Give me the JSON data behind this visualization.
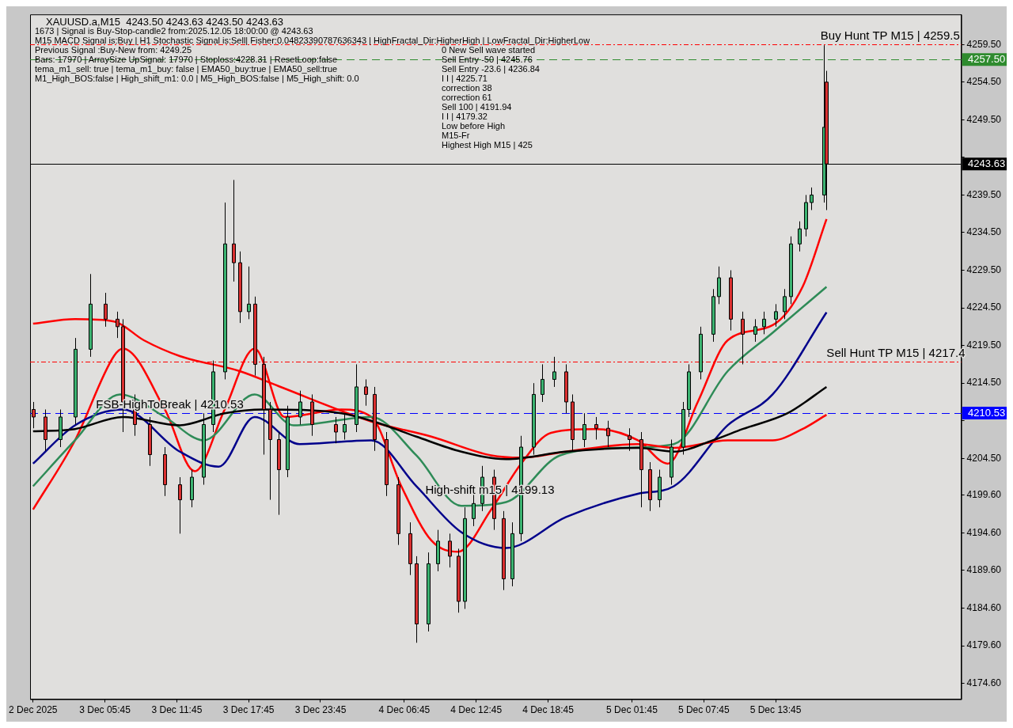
{
  "chart_data": {
    "type": "candlestick",
    "title": "XAUUSD.a,M15  4243.50 4243.63 4243.50 4243.63",
    "x": [
      "2025-12-02T23:45",
      "2025-12-03T00:45",
      "2025-12-03T02:00",
      "2025-12-03T03:15",
      "2025-12-03T04:30",
      "2025-12-03T05:45",
      "2025-12-03T06:45",
      "2025-12-03T07:15",
      "2025-12-03T08:15",
      "2025-12-03T09:30",
      "2025-12-03T10:45",
      "2025-12-03T12:00",
      "2025-12-03T13:00",
      "2025-12-03T14:00",
      "2025-12-03T14:45",
      "2025-12-03T15:45",
      "2025-12-03T16:30",
      "2025-12-03T17:00",
      "2025-12-03T17:45",
      "2025-12-03T18:15",
      "2025-12-03T19:00",
      "2025-12-03T19:30",
      "2025-12-03T20:15",
      "2025-12-03T21:00",
      "2025-12-03T22:00",
      "2025-12-03T23:00",
      "2025-12-04T01:00",
      "2025-12-04T01:45",
      "2025-12-04T02:45",
      "2025-12-04T03:30",
      "2025-12-04T04:15",
      "2025-12-04T05:15",
      "2025-12-04T06:15",
      "2025-12-04T07:15",
      "2025-12-04T07:45",
      "2025-12-04T08:45",
      "2025-12-04T09:30",
      "2025-12-04T10:30",
      "2025-12-04T11:15",
      "2025-12-04T11:45",
      "2025-12-04T12:30",
      "2025-12-04T13:15",
      "2025-12-04T14:15",
      "2025-12-04T15:00",
      "2025-12-04T15:45",
      "2025-12-04T16:30",
      "2025-12-04T17:30",
      "2025-12-04T18:15",
      "2025-12-04T19:15",
      "2025-12-04T20:15",
      "2025-12-04T20:45",
      "2025-12-04T21:45",
      "2025-12-04T22:45",
      "2025-12-04T23:45",
      "2025-12-05T01:30",
      "2025-12-05T02:30",
      "2025-12-05T03:15",
      "2025-12-05T04:00",
      "2025-12-05T05:00",
      "2025-12-05T06:00",
      "2025-12-05T06:30",
      "2025-12-05T07:30",
      "2025-12-05T08:30",
      "2025-12-05T09:00",
      "2025-12-05T10:00",
      "2025-12-05T11:00",
      "2025-12-05T12:00",
      "2025-12-05T12:45",
      "2025-12-05T13:45",
      "2025-12-05T14:30",
      "2025-12-05T15:00",
      "2025-12-05T15:45",
      "2025-12-05T16:15",
      "2025-12-05T16:45",
      "2025-12-05T17:45",
      "2025-12-05T18:00"
    ],
    "ohlc": [
      [
        4211,
        4212,
        4208.5,
        4210
      ],
      [
        4210,
        4211,
        4205.5,
        4207
      ],
      [
        4207,
        4211,
        4206,
        4210
      ],
      [
        4210,
        4220.5,
        4209,
        4219
      ],
      [
        4219,
        4229,
        4218,
        4225
      ],
      [
        4225,
        4226.5,
        4222,
        4223
      ],
      [
        4223,
        4224,
        4220.5,
        4222
      ],
      [
        4222,
        4223,
        4208,
        4212
      ],
      [
        4212,
        4213,
        4207.5,
        4209
      ],
      [
        4209,
        4210,
        4203.5,
        4205
      ],
      [
        4205,
        4206,
        4199.5,
        4201
      ],
      [
        4201,
        4202,
        4194.5,
        4199
      ],
      [
        4199,
        4203,
        4198,
        4202
      ],
      [
        4202,
        4210.5,
        4201,
        4209
      ],
      [
        4209,
        4217.5,
        4208,
        4216
      ],
      [
        4216,
        4238.5,
        4215,
        4233
      ],
      [
        4233,
        4241.5,
        4228,
        4230.5
      ],
      [
        4230.5,
        4232,
        4222.5,
        4224
      ],
      [
        4224,
        4230,
        4223,
        4225
      ],
      [
        4225,
        4226,
        4215.5,
        4217
      ],
      [
        4217,
        4218,
        4205,
        4211
      ],
      [
        4211,
        4212,
        4199,
        4207
      ],
      [
        4207,
        4208,
        4197,
        4203
      ],
      [
        4203,
        4211.5,
        4202,
        4210
      ],
      [
        4210,
        4213.5,
        4209,
        4212
      ],
      [
        4212,
        4213,
        4207.5,
        4209
      ],
      [
        4209,
        4210,
        4206.5,
        4208
      ],
      [
        4208,
        4210.5,
        4207,
        4209
      ],
      [
        4209,
        4217,
        4208,
        4214
      ],
      [
        4214,
        4215,
        4211.5,
        4213
      ],
      [
        4213,
        4214,
        4205.5,
        4207
      ],
      [
        4207,
        4208,
        4199.5,
        4201
      ],
      [
        4201,
        4202,
        4193,
        4194.5
      ],
      [
        4194.5,
        4196,
        4189,
        4190.5
      ],
      [
        4190.5,
        4191.5,
        4180,
        4182.5
      ],
      [
        4182.5,
        4192,
        4181.5,
        4190.5
      ],
      [
        4190.5,
        4195,
        4189.5,
        4193.5
      ],
      [
        4193.5,
        4194.5,
        4190,
        4191.5
      ],
      [
        4191.5,
        4192.5,
        4184,
        4185.5
      ],
      [
        4185.5,
        4198,
        4184.5,
        4196.5
      ],
      [
        4196.5,
        4200,
        4195.5,
        4198.5
      ],
      [
        4198.5,
        4203.5,
        4197.5,
        4202
      ],
      [
        4202,
        4203,
        4195,
        4196.5
      ],
      [
        4196.5,
        4197.5,
        4187,
        4188.5
      ],
      [
        4188.5,
        4196,
        4187.5,
        4194.5
      ],
      [
        4194.5,
        4207.5,
        4193.5,
        4206
      ],
      [
        4206,
        4214.5,
        4205,
        4213
      ],
      [
        4213,
        4217,
        4212,
        4215
      ],
      [
        4215,
        4218,
        4214,
        4216
      ],
      [
        4216,
        4217,
        4210.5,
        4212
      ],
      [
        4212,
        4213,
        4205.5,
        4207
      ],
      [
        4207,
        4210.5,
        4206,
        4209
      ],
      [
        4209,
        4210,
        4207,
        4208.5
      ],
      [
        4208.5,
        4209.5,
        4206,
        4207.5
      ],
      [
        4207.5,
        4208.5,
        4205.5,
        4207
      ],
      [
        4207,
        4208,
        4198,
        4203
      ],
      [
        4203,
        4204,
        4197.5,
        4199
      ],
      [
        4199,
        4203,
        4198,
        4202
      ],
      [
        4202,
        4207,
        4201,
        4206
      ],
      [
        4206,
        4212,
        4205,
        4211
      ],
      [
        4211,
        4217,
        4210,
        4216
      ],
      [
        4216,
        4222,
        4215,
        4221
      ],
      [
        4221,
        4227,
        4220,
        4226
      ],
      [
        4226,
        4230,
        4225,
        4228.5
      ],
      [
        4228.5,
        4229.5,
        4221.5,
        4223
      ],
      [
        4223,
        4224,
        4217,
        4221
      ],
      [
        4221,
        4223,
        4220,
        4222
      ],
      [
        4222,
        4224,
        4221,
        4223
      ],
      [
        4223,
        4225,
        4222,
        4224
      ],
      [
        4224,
        4227,
        4223,
        4226
      ],
      [
        4226,
        4234,
        4225,
        4233
      ],
      [
        4233,
        4236,
        4232,
        4235
      ],
      [
        4235,
        4239.5,
        4234,
        4238.5
      ],
      [
        4238.5,
        4240.5,
        4237.5,
        4239.5
      ],
      [
        4239.5,
        4259.4,
        4238.5,
        4248.5
      ],
      [
        4254.5,
        4256,
        4237.5,
        4243.63
      ]
    ],
    "series": [
      {
        "type": "line",
        "color": "#000000",
        "x": [
          "2025-12-02T23:45",
          "2025-12-03T03:15",
          "2025-12-03T07:15",
          "2025-12-03T12:00",
          "2025-12-03T15:45",
          "2025-12-03T19:00",
          "2025-12-04T01:30",
          "2025-12-04T04:00",
          "2025-12-04T07:45",
          "2025-12-04T11:30",
          "2025-12-04T15:15",
          "2025-12-04T20:15",
          "2025-12-05T02:15",
          "2025-12-05T05:15",
          "2025-12-05T08:30",
          "2025-12-05T11:00",
          "2025-12-05T14:45",
          "2025-12-05T18:00"
        ],
        "values": [
          4208.1,
          4208.4,
          4210.0,
          4208.9,
          4210.5,
          4211.0,
          4210.5,
          4209.5,
          4207.4,
          4205.4,
          4204.4,
          4205.4,
          4205.9,
          4205.4,
          4206.9,
          4208.4,
          4210.5,
          4214.0
        ]
      },
      {
        "type": "line",
        "color": "#ff0000",
        "x": [
          "2025-12-02T23:45",
          "2025-12-03T03:15",
          "2025-12-03T06:30",
          "2025-12-03T09:00",
          "2025-12-03T12:00",
          "2025-12-03T17:00",
          "2025-12-03T20:15",
          "2025-12-04T04:00",
          "2025-12-04T09:00",
          "2025-12-04T14:00",
          "2025-12-04T16:30",
          "2025-12-04T20:15",
          "2025-12-05T02:15",
          "2025-12-05T05:15",
          "2025-12-05T09:45",
          "2025-12-05T13:30",
          "2025-12-05T16:00",
          "2025-12-05T18:00"
        ],
        "values": [
          4222.4,
          4223.0,
          4222.7,
          4220.2,
          4218.1,
          4216.1,
          4214.1,
          4209.4,
          4207.4,
          4204.9,
          4204.6,
          4205.4,
          4206.4,
          4205.9,
          4206.9,
          4206.9,
          4208.4,
          4210.3
        ]
      },
      {
        "type": "line",
        "color": "#2e8b57",
        "x": [
          "2025-12-02T23:45",
          "2025-12-03T03:15",
          "2025-12-03T07:00",
          "2025-12-03T10:45",
          "2025-12-03T14:00",
          "2025-12-03T18:15",
          "2025-12-03T21:30",
          "2025-12-04T04:00",
          "2025-12-04T07:45",
          "2025-12-04T11:30",
          "2025-12-04T15:15",
          "2025-12-04T19:45",
          "2025-12-05T01:00",
          "2025-12-05T05:15",
          "2025-12-05T09:45",
          "2025-12-05T13:30",
          "2025-12-05T18:00"
        ],
        "values": [
          4200.8,
          4206.9,
          4213.0,
          4210.0,
          4206.9,
          4213.0,
          4208.9,
          4210.0,
          4204.9,
          4198.2,
          4198.7,
          4204.9,
          4205.9,
          4206.4,
          4216.1,
          4221.2,
          4227.3
        ]
      },
      {
        "type": "line",
        "color": "#00008b",
        "x": [
          "2025-12-02T23:45",
          "2025-12-03T03:15",
          "2025-12-03T07:15",
          "2025-12-03T12:00",
          "2025-12-03T15:15",
          "2025-12-03T18:15",
          "2025-12-03T22:00",
          "2025-12-04T04:00",
          "2025-12-04T07:45",
          "2025-12-04T11:30",
          "2025-12-04T15:15",
          "2025-12-04T20:15",
          "2025-12-05T02:15",
          "2025-12-05T05:15",
          "2025-12-05T09:45",
          "2025-12-05T13:30",
          "2025-12-05T18:00"
        ],
        "values": [
          4203.8,
          4208.9,
          4211.0,
          4205.4,
          4203.4,
          4210.0,
          4206.4,
          4206.9,
          4200.8,
          4194.7,
          4192.6,
          4196.7,
          4199.8,
          4200.8,
          4208.9,
          4213.0,
          4223.9
        ]
      },
      {
        "type": "line",
        "color": "#ff0000",
        "x": [
          "2025-12-02T23:45",
          "2025-12-03T03:15",
          "2025-12-03T06:30",
          "2025-12-03T07:15",
          "2025-12-03T10:45",
          "2025-12-03T13:15",
          "2025-12-03T15:45",
          "2025-12-03T18:15",
          "2025-12-03T20:45",
          "2025-12-04T01:30",
          "2025-12-04T04:00",
          "2025-12-04T06:30",
          "2025-12-04T09:00",
          "2025-12-04T11:15",
          "2025-12-04T14:00",
          "2025-12-04T16:30",
          "2025-12-04T19:00",
          "2025-12-04T22:45",
          "2025-12-05T02:15",
          "2025-12-05T04:45",
          "2025-12-05T07:15",
          "2025-12-05T09:45",
          "2025-12-05T13:30",
          "2025-12-05T16:00",
          "2025-12-05T18:00"
        ],
        "values": [
          4197.7,
          4206.9,
          4218.1,
          4219.1,
          4211.0,
          4202.8,
          4211.0,
          4219.1,
          4210.0,
          4211.0,
          4210.0,
          4200.8,
          4193.6,
          4192.1,
          4197.7,
          4203.8,
          4207.9,
          4208.4,
          4206.9,
          4203.8,
          4212.0,
          4220.2,
          4222.2,
          4227.3,
          4236.3
        ]
      }
    ],
    "xlim": [
      "2025-12-02T23:30",
      "2025-12-06T05:15"
    ],
    "ylim": [
      4172.5,
      4263.5
    ],
    "xticks": [
      {
        "value": "2025-12-02T23:45",
        "label": "2 Dec 2025"
      },
      {
        "value": "2025-12-03T05:45",
        "label": "3 Dec 05:45"
      },
      {
        "value": "2025-12-03T11:45",
        "label": "3 Dec 11:45"
      },
      {
        "value": "2025-12-03T17:45",
        "label": "3 Dec 17:45"
      },
      {
        "value": "2025-12-03T23:45",
        "label": "3 Dec 23:45"
      },
      {
        "value": "2025-12-04T06:45",
        "label": "4 Dec 06:45"
      },
      {
        "value": "2025-12-04T12:45",
        "label": "4 Dec 12:45"
      },
      {
        "value": "2025-12-04T18:45",
        "label": "4 Dec 18:45"
      },
      {
        "value": "2025-12-05T01:45",
        "label": "5 Dec 01:45"
      },
      {
        "value": "2025-12-05T07:45",
        "label": "5 Dec 07:45"
      },
      {
        "value": "2025-12-05T13:45",
        "label": "5 Dec 13:45"
      }
    ],
    "yticks": [
      {
        "value": 4259.5,
        "label": "4259.50"
      },
      {
        "value": 4254.5,
        "label": "4254.50"
      },
      {
        "value": 4249.5,
        "label": "4249.50"
      },
      {
        "value": 4244.5,
        "label": null
      },
      {
        "value": 4239.5,
        "label": "4239.50"
      },
      {
        "value": 4234.5,
        "label": "4234.50"
      },
      {
        "value": 4229.5,
        "label": "4229.50"
      },
      {
        "value": 4224.5,
        "label": "4224.50"
      },
      {
        "value": 4219.5,
        "label": "4219.50"
      },
      {
        "value": 4214.5,
        "label": "4214.50"
      },
      {
        "value": 4209.5,
        "label": null
      },
      {
        "value": 4204.5,
        "label": "4204.50"
      },
      {
        "value": 4199.6,
        "label": "4199.60"
      },
      {
        "value": 4194.6,
        "label": "4194.60"
      },
      {
        "value": 4189.6,
        "label": "4189.60"
      },
      {
        "value": 4184.6,
        "label": "4184.60"
      },
      {
        "value": 4179.6,
        "label": "4179.60"
      },
      {
        "value": 4174.6,
        "label": "4174.60"
      }
    ],
    "ref_lines": [
      {
        "axis": "y",
        "value": 4243.63,
        "label": "4243.63",
        "color": "#000000",
        "line_style": "solid"
      },
      {
        "axis": "y",
        "value": 4257.5,
        "label": "4257.50",
        "color": "#2e8b2e",
        "line_style": "dashed"
      },
      {
        "axis": "y",
        "value": 4210.53,
        "label": "4210.53",
        "color": "#0000ff",
        "line_style": "dashed"
      },
      {
        "axis": "y",
        "value": 4217.4,
        "color": "#ff0000",
        "line_style": "dotted"
      },
      {
        "axis": "y",
        "value": 4259.5,
        "color": "#ff0000",
        "line_style": "dotted"
      }
    ],
    "annotations": [
      "1673 | Signal is Buy-Stop-candle2 from:2025.12.05 18:00:00 @ 4243.63",
      "M15 MACD Signal is:Buy | H1 Stochastic Signal is:Sell| Fisher:0.04823390787636343 | HighFractal_Dir:HigherHigh | LowFractal_Dir:HigherLow",
      "Previous Signal :Buy-New from: 4249.25",
      "Bars: 17970 | ArraySize UpSignal: 17970 | Stoploss:4228.31 | ResetLoop:false",
      "tema_m1_sell: true | tema_m1_buy: false | EMA50_buy:true | EMA50_sell:true",
      "M1_High_BOS:false | High_shift_m1: 0.0 | M5_High_BOS:false | M5_High_shift: 0.0",
      "0 New Sell wave started",
      "Sell Entry -50 | 4245.76",
      "Sell Entry -23.6 | 4236.84",
      "I I | 4225.71",
      "correction 38",
      "correction 61",
      "Sell 100 | 4191.94",
      "I I | 4179.32",
      "Low before High",
      "M15-Fr",
      "Highest High M15 | 425",
      {
        "text": "FSB-HighToBreak | 4210.53",
        "x": "2025-12-03T05:00",
        "y": 4210.53
      },
      {
        "text": "High-shift m15 | 4199.13",
        "x": "2025-12-04T08:30",
        "y": 4199.13
      },
      {
        "text": "Buy Hunt TP M15 | 4259.5",
        "x": "2025-12-05T17:30",
        "y": 4259.5
      },
      {
        "text": "Sell Hunt TP M15 | 4217.4",
        "x": "2025-12-05T18:00",
        "y": 4217.4
      }
    ],
    "legend": false,
    "grid": false
  }
}
